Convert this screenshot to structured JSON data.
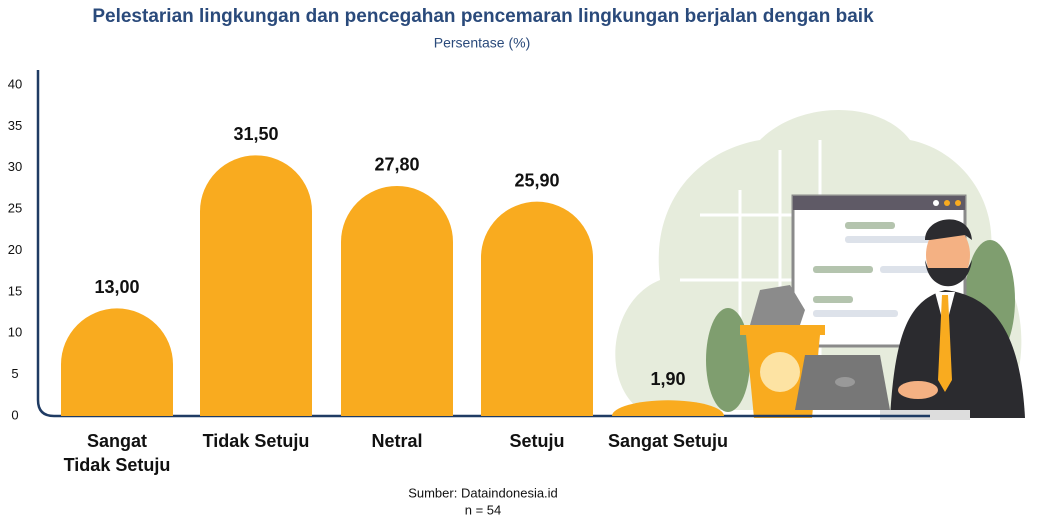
{
  "chart_data": {
    "type": "bar",
    "title": "Pelestarian lingkungan dan pencegahan pencemaran lingkungan berjalan dengan baik",
    "subtitle": "Persentase (%)",
    "categories": [
      "Sangat Tidak Setuju",
      "Tidak Setuju",
      "Netral",
      "Setuju",
      "Sangat Setuju"
    ],
    "values": [
      13.0,
      31.5,
      27.8,
      25.9,
      1.9
    ],
    "value_labels": [
      "13,00",
      "31,50",
      "27,80",
      "25,90",
      "1,90"
    ],
    "color": "#f9ab1f",
    "ylim": [
      0,
      40
    ],
    "yticks": [
      0,
      5,
      10,
      15,
      20,
      25,
      30,
      35,
      40
    ],
    "source": "Sumber: Dataindonesia.id",
    "note": "n = 54"
  }
}
